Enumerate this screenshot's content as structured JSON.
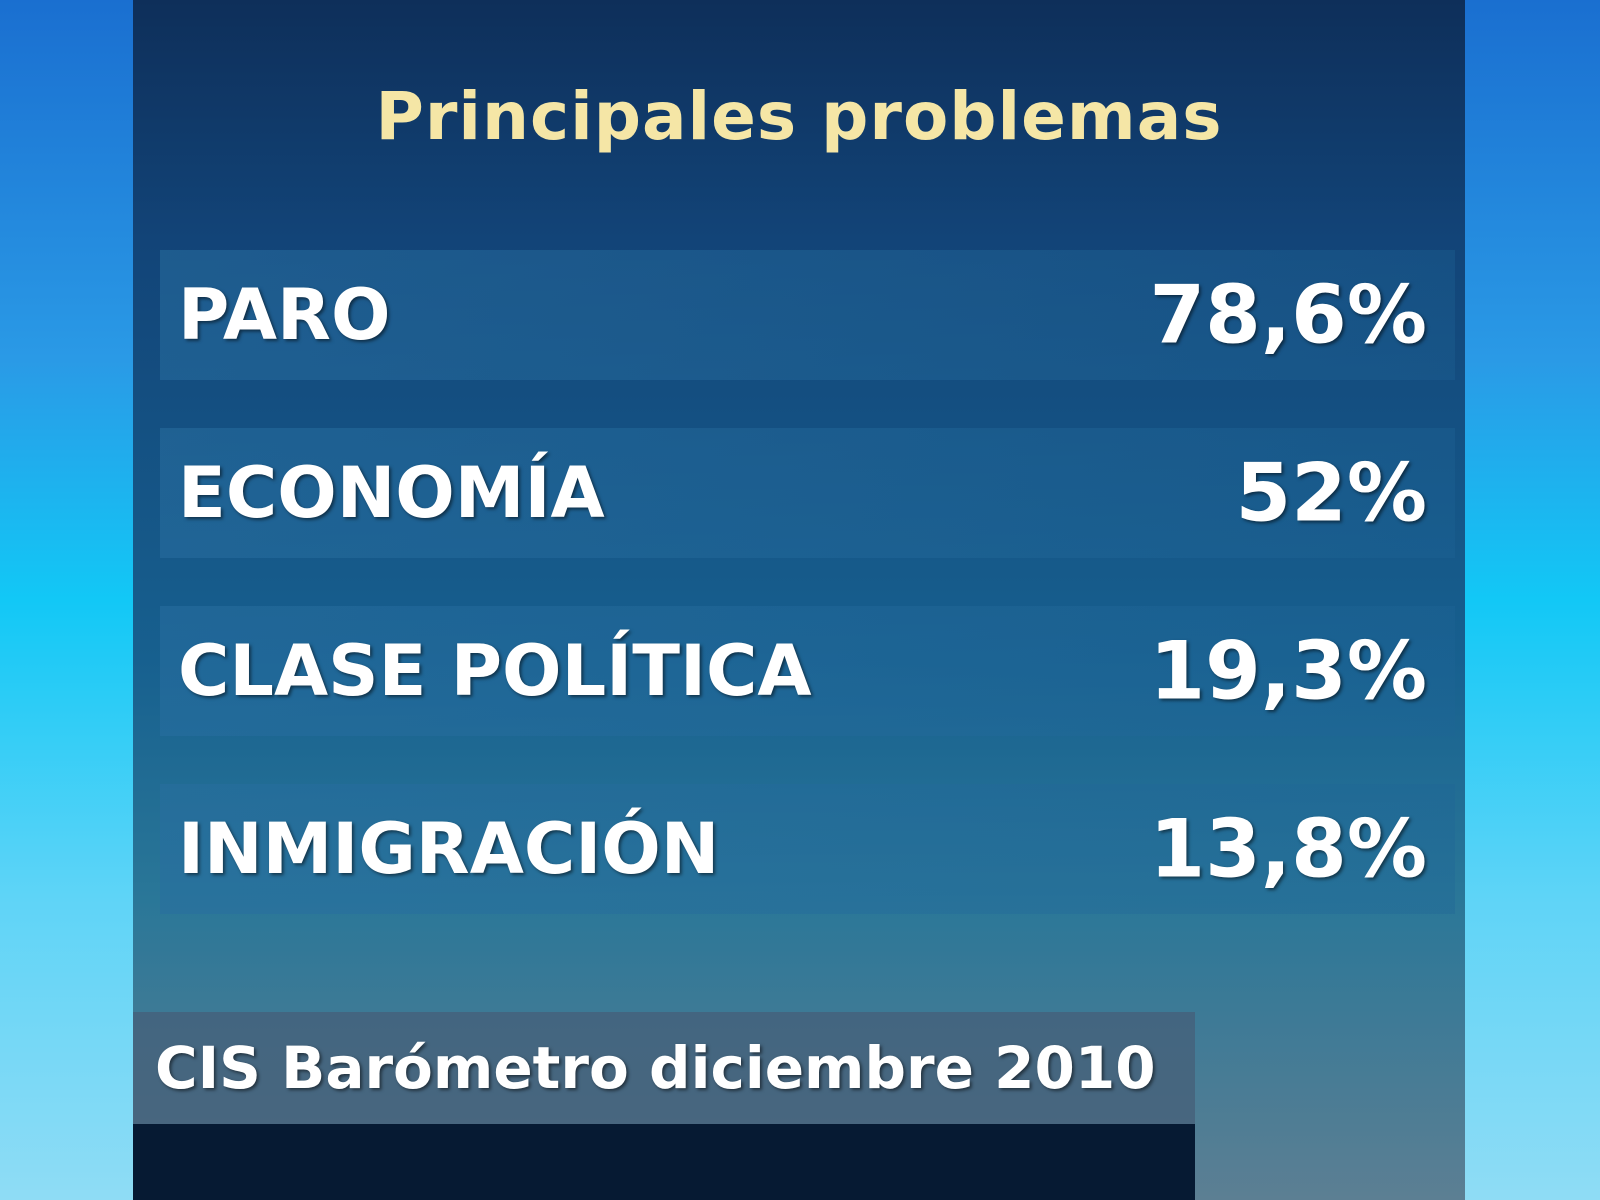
{
  "title": "Principales problemas",
  "table": {
    "rows": [
      [
        "PARO",
        "78,6%"
      ],
      [
        "ECONOMÍA",
        "52%"
      ],
      [
        "CLASE POLÍTICA",
        "19,3%"
      ],
      [
        "INMIGRACIÓN",
        "13,8%"
      ]
    ]
  },
  "footer": "CIS Barómetro diciembre 2010"
}
